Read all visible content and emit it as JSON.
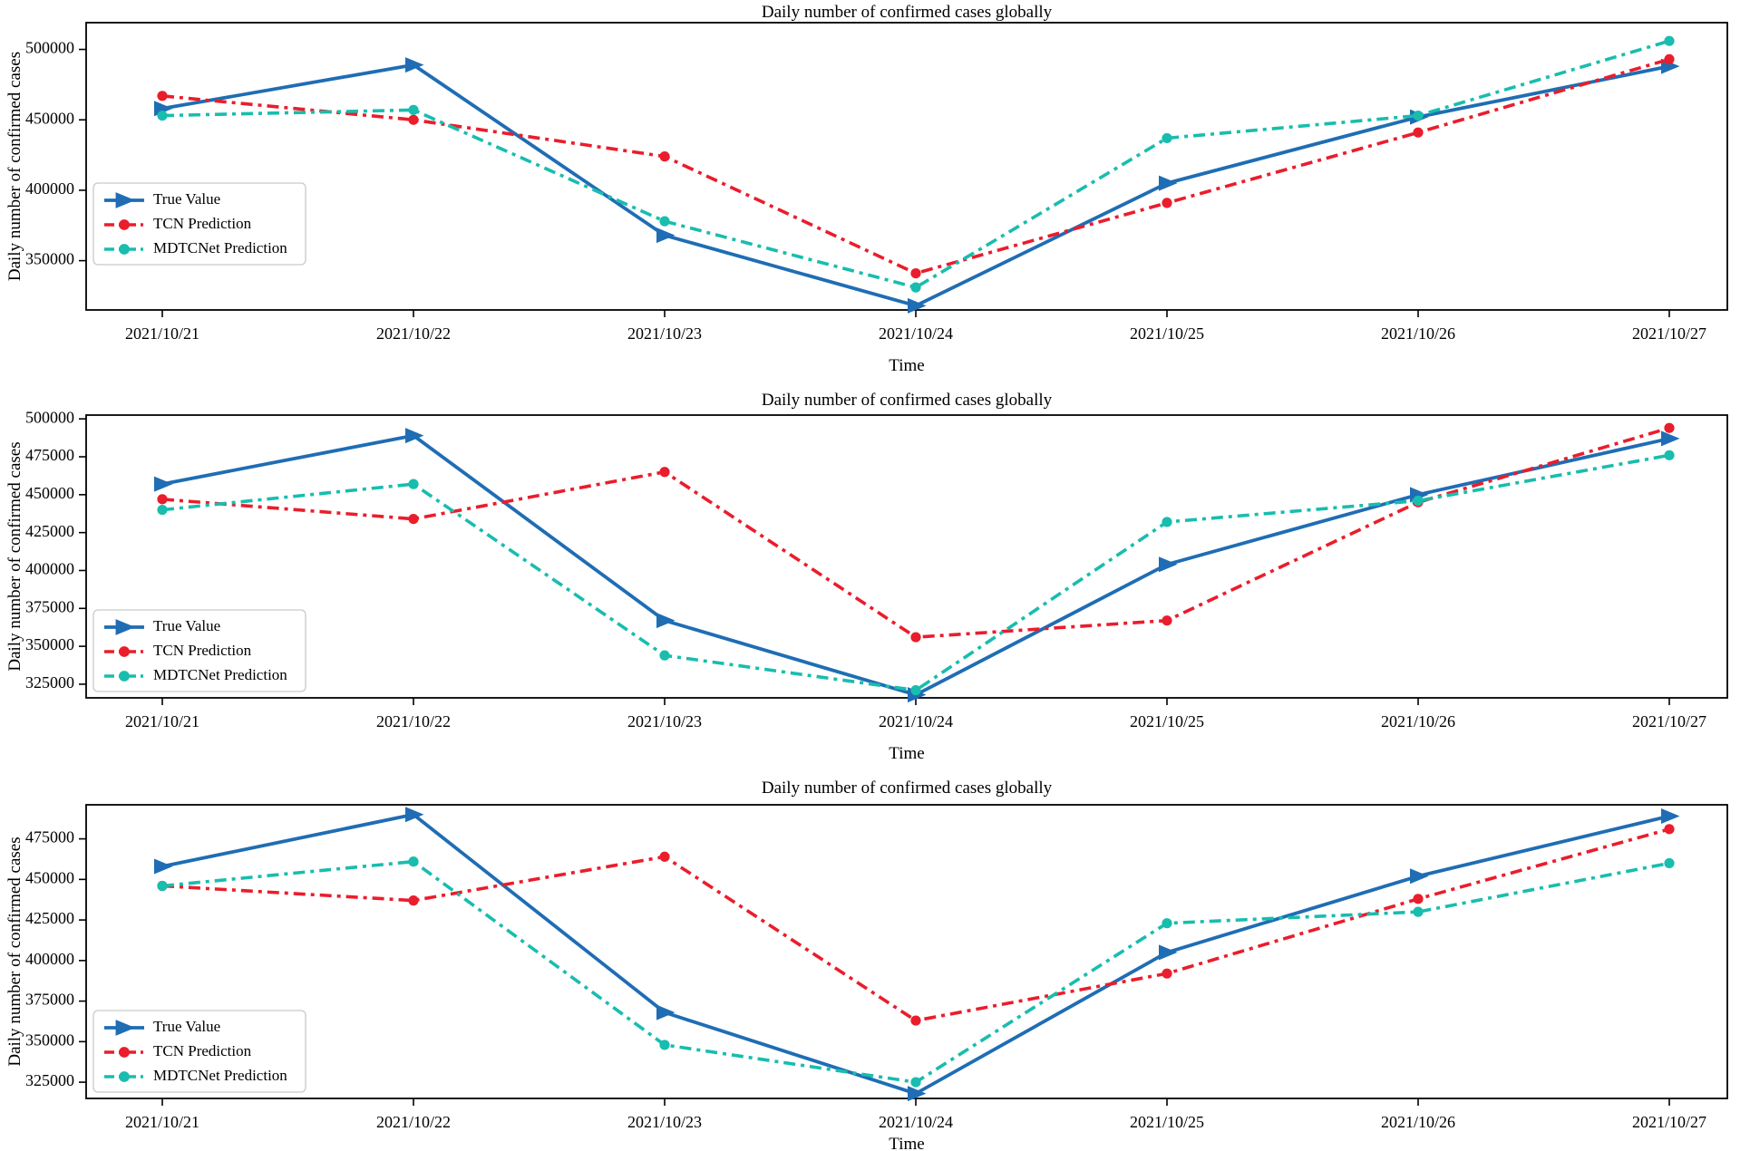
{
  "figure": {
    "background": "#ffffff",
    "axis_color": "#000000"
  },
  "chart_data": [
    {
      "type": "line",
      "title": "Daily number of confirmed cases globally",
      "xlabel": "Time",
      "ylabel": "Daily number of confirmed cases",
      "categories": [
        "2021/10/21",
        "2021/10/22",
        "2021/10/23",
        "2021/10/24",
        "2021/10/25",
        "2021/10/26",
        "2021/10/27"
      ],
      "yticks": [
        350000,
        400000,
        450000,
        500000
      ],
      "ylim": [
        315000,
        519000
      ],
      "grid": false,
      "legend_position": "lower left",
      "series": [
        {
          "name": "True Value",
          "color": "#1f6db4",
          "style": "solid",
          "marker": "triangle-right",
          "values": [
            458000,
            489000,
            368000,
            318000,
            405000,
            452000,
            488000
          ]
        },
        {
          "name": "TCN Prediction",
          "color": "#ea1d2c",
          "style": "dashdot",
          "marker": "circle",
          "values": [
            467000,
            450000,
            424000,
            341000,
            391000,
            441000,
            493000
          ]
        },
        {
          "name": "MDTCNet Prediction",
          "color": "#18bdae",
          "style": "dashdot",
          "marker": "circle",
          "values": [
            453000,
            457000,
            378000,
            331000,
            437000,
            453000,
            506000
          ]
        }
      ]
    },
    {
      "type": "line",
      "title": "Daily number of confirmed cases globally",
      "xlabel": "Time",
      "ylabel": "Daily number of confirmed cases",
      "categories": [
        "2021/10/21",
        "2021/10/22",
        "2021/10/23",
        "2021/10/24",
        "2021/10/25",
        "2021/10/26",
        "2021/10/27"
      ],
      "yticks": [
        325000,
        350000,
        375000,
        400000,
        425000,
        450000,
        475000,
        500000
      ],
      "ylim": [
        316000,
        502500
      ],
      "grid": false,
      "legend_position": "lower left",
      "series": [
        {
          "name": "True Value",
          "color": "#1f6db4",
          "style": "solid",
          "marker": "triangle-right",
          "values": [
            457000,
            489000,
            367000,
            318000,
            404000,
            450000,
            487000
          ]
        },
        {
          "name": "TCN Prediction",
          "color": "#ea1d2c",
          "style": "dashdot",
          "marker": "circle",
          "values": [
            447000,
            434000,
            465000,
            356000,
            367000,
            445000,
            494000
          ]
        },
        {
          "name": "MDTCNet Prediction",
          "color": "#18bdae",
          "style": "dashdot",
          "marker": "circle",
          "values": [
            440000,
            457000,
            344000,
            321000,
            432000,
            446000,
            476000
          ]
        }
      ]
    },
    {
      "type": "line",
      "title": "Daily number of confirmed cases globally",
      "xlabel": "Time",
      "ylabel": "Daily number of confirmed cases",
      "categories": [
        "2021/10/21",
        "2021/10/22",
        "2021/10/23",
        "2021/10/24",
        "2021/10/25",
        "2021/10/26",
        "2021/10/27"
      ],
      "yticks": [
        325000,
        350000,
        375000,
        400000,
        425000,
        450000,
        475000
      ],
      "ylim": [
        315000,
        496000
      ],
      "grid": false,
      "legend_position": "lower left",
      "series": [
        {
          "name": "True Value",
          "color": "#1f6db4",
          "style": "solid",
          "marker": "triangle-right",
          "values": [
            458000,
            490000,
            368000,
            318000,
            405000,
            452000,
            489000
          ]
        },
        {
          "name": "TCN Prediction",
          "color": "#ea1d2c",
          "style": "dashdot",
          "marker": "circle",
          "values": [
            446000,
            437000,
            464000,
            363000,
            392000,
            438000,
            481000
          ]
        },
        {
          "name": "MDTCNet Prediction",
          "color": "#18bdae",
          "style": "dashdot",
          "marker": "circle",
          "values": [
            446000,
            461000,
            348000,
            325000,
            423000,
            430000,
            460000
          ]
        }
      ]
    }
  ]
}
